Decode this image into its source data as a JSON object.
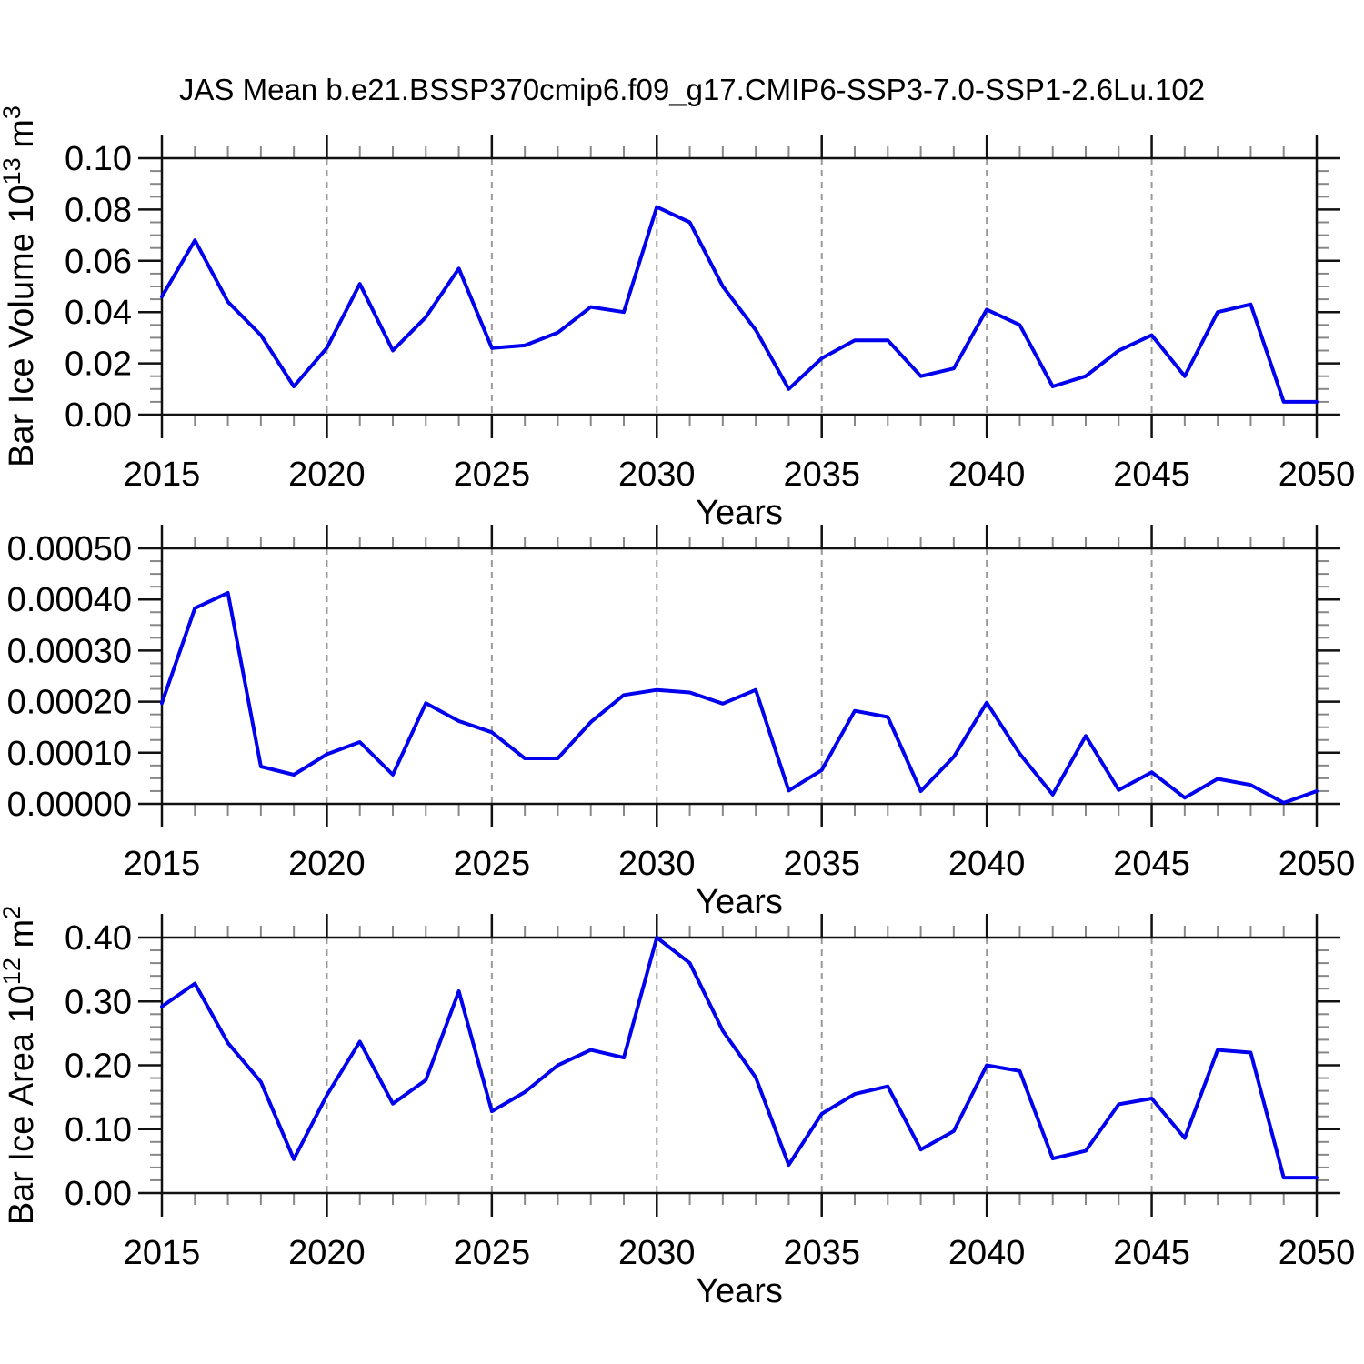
{
  "title": "JAS Mean b.e21.BSSP370cmip6.f09_g17.CMIP6-SSP3-7.0-SSP1-2.6Lu.102",
  "colors": {
    "line": "#0000EE",
    "frame": "#111111",
    "major_tick": "#111111",
    "minor_tick": "#888888",
    "grid": "#999999",
    "text": "#000000",
    "background": "#ffffff"
  },
  "chart_data": {
    "type": "line",
    "layout": "three stacked panels sharing x axis range, vertical dashed gridlines every 5 years, outward ticks on all four box sides",
    "xlabel": "Years",
    "x": [
      2015,
      2016,
      2017,
      2018,
      2019,
      2020,
      2021,
      2022,
      2023,
      2024,
      2025,
      2026,
      2027,
      2028,
      2029,
      2030,
      2031,
      2032,
      2033,
      2034,
      2035,
      2036,
      2037,
      2038,
      2039,
      2040,
      2041,
      2042,
      2043,
      2044,
      2045,
      2046,
      2047,
      2048,
      2049,
      2050
    ],
    "xlim": [
      2015,
      2050
    ],
    "xtick_labels": [
      "2015",
      "2020",
      "2025",
      "2030",
      "2035",
      "2040",
      "2045",
      "2050"
    ],
    "xtick_major_step": 5,
    "xtick_minor_step": 1,
    "grid_years": [
      2020,
      2025,
      2030,
      2035,
      2040,
      2045
    ],
    "panels": [
      {
        "name": "bar-ice-volume",
        "ylabel": "Bar Ice Volume 10^13 m^3",
        "ylim": [
          0,
          0.1
        ],
        "ytick_major": 0.02,
        "ytick_minor": 0.005,
        "ytick_labels": [
          "0.00",
          "0.02",
          "0.04",
          "0.06",
          "0.08",
          "0.10"
        ],
        "series": [
          {
            "name": "JAS mean bar ice volume",
            "values": [
              0.046,
              0.068,
              0.044,
              0.031,
              0.011,
              0.026,
              0.051,
              0.025,
              0.038,
              0.057,
              0.026,
              0.027,
              0.032,
              0.042,
              0.04,
              0.081,
              0.075,
              0.05,
              0.033,
              0.01,
              0.022,
              0.029,
              0.029,
              0.015,
              0.018,
              0.041,
              0.035,
              0.011,
              0.015,
              0.025,
              0.031,
              0.015,
              0.04,
              0.043,
              0.005,
              0.005
            ]
          }
        ]
      },
      {
        "name": "middle-unlabeled",
        "ylabel": "",
        "ylim": [
          0,
          0.0005
        ],
        "ytick_major": 0.0001,
        "ytick_minor": 2.5e-05,
        "ytick_labels": [
          "0.00000",
          "0.00010",
          "0.00020",
          "0.00030",
          "0.00040",
          "0.00050"
        ],
        "series": [
          {
            "name": "JAS mean (unlabeled quantity)",
            "values": [
              0.000197,
              0.000383,
              0.000413,
              7.3e-05,
              5.7e-05,
              9.7e-05,
              0.000121,
              5.7e-05,
              0.000197,
              0.000162,
              0.00014,
              8.9e-05,
              8.9e-05,
              0.00016,
              0.000213,
              0.000223,
              0.000218,
              0.000196,
              0.000223,
              2.6e-05,
              6.6e-05,
              0.000182,
              0.00017,
              2.5e-05,
              9.2e-05,
              0.000198,
              9.8e-05,
              1.8e-05,
              0.000133,
              2.7e-05,
              6.2e-05,
              1.2e-05,
              4.9e-05,
              3.7e-05,
              2e-06,
              2.5e-05
            ]
          }
        ]
      },
      {
        "name": "bar-ice-area",
        "ylabel": "Bar Ice Area 10^12 m^2",
        "ylim": [
          0,
          0.4
        ],
        "ytick_major": 0.1,
        "ytick_minor": 0.02,
        "ytick_labels": [
          "0.00",
          "0.10",
          "0.20",
          "0.30",
          "0.40"
        ],
        "series": [
          {
            "name": "JAS mean bar ice area",
            "values": [
              0.292,
              0.328,
              0.235,
              0.174,
              0.053,
              0.153,
              0.237,
              0.14,
              0.177,
              0.316,
              0.128,
              0.158,
              0.2,
              0.224,
              0.212,
              0.4,
              0.36,
              0.254,
              0.181,
              0.044,
              0.124,
              0.155,
              0.167,
              0.068,
              0.097,
              0.2,
              0.191,
              0.054,
              0.066,
              0.139,
              0.148,
              0.086,
              0.224,
              0.22,
              0.024,
              0.024
            ]
          }
        ]
      }
    ]
  }
}
